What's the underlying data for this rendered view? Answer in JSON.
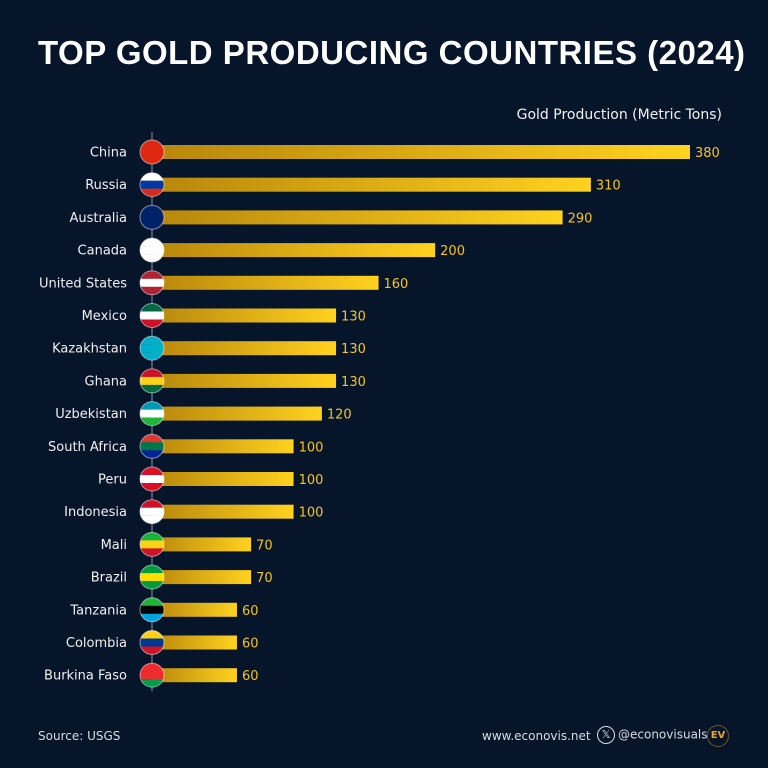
{
  "chart_data": {
    "type": "bar",
    "orientation": "horizontal",
    "title": "TOP GOLD PRODUCING COUNTRIES (2024)",
    "unit_label": "Gold Production (Metric Tons)",
    "categories": [
      "China",
      "Russia",
      "Australia",
      "Canada",
      "United States",
      "Mexico",
      "Kazakhstan",
      "Ghana",
      "Uzbekistan",
      "South Africa",
      "Peru",
      "Indonesia",
      "Mali",
      "Brazil",
      "Tanzania",
      "Colombia",
      "Burkina Faso"
    ],
    "values": [
      380,
      310,
      290,
      200,
      160,
      130,
      130,
      130,
      120,
      100,
      100,
      100,
      70,
      70,
      60,
      60,
      60
    ],
    "xlim": [
      0,
      380
    ],
    "grid": false,
    "bar_gradient": [
      "#b8860b",
      "#ffd21f"
    ],
    "value_label_color": "#f5c518",
    "flags": [
      [
        "#de2910",
        "#de2910",
        "#de2910"
      ],
      [
        "#ffffff",
        "#0039a6",
        "#d52b1e"
      ],
      [
        "#012169",
        "#012169",
        "#012169"
      ],
      [
        "#ffffff",
        "#ffffff",
        "#ffffff"
      ],
      [
        "#b22234",
        "#ffffff",
        "#b22234"
      ],
      [
        "#006847",
        "#ffffff",
        "#ce1126"
      ],
      [
        "#00afca",
        "#00afca",
        "#00afca"
      ],
      [
        "#ce1126",
        "#fcd116",
        "#006b3f"
      ],
      [
        "#0099b5",
        "#ffffff",
        "#1eb53a"
      ],
      [
        "#de3831",
        "#007749",
        "#002395"
      ],
      [
        "#d91023",
        "#ffffff",
        "#d91023"
      ],
      [
        "#ce1126",
        "#ffffff",
        "#ffffff"
      ],
      [
        "#14b53a",
        "#fcd116",
        "#ce1126"
      ],
      [
        "#009c3b",
        "#ffdf00",
        "#009c3b"
      ],
      [
        "#1eb53a",
        "#000000",
        "#00a3dd"
      ],
      [
        "#fcd116",
        "#003893",
        "#ce1126"
      ],
      [
        "#ef2b2d",
        "#ef2b2d",
        "#009e49"
      ]
    ]
  },
  "footer": {
    "source": "Source: USGS",
    "website": "www.econovis.net",
    "social": "@econovisuals",
    "social_icon": "x-logo-icon",
    "logo_text": "EV"
  },
  "colors": {
    "background": "#07152b"
  }
}
